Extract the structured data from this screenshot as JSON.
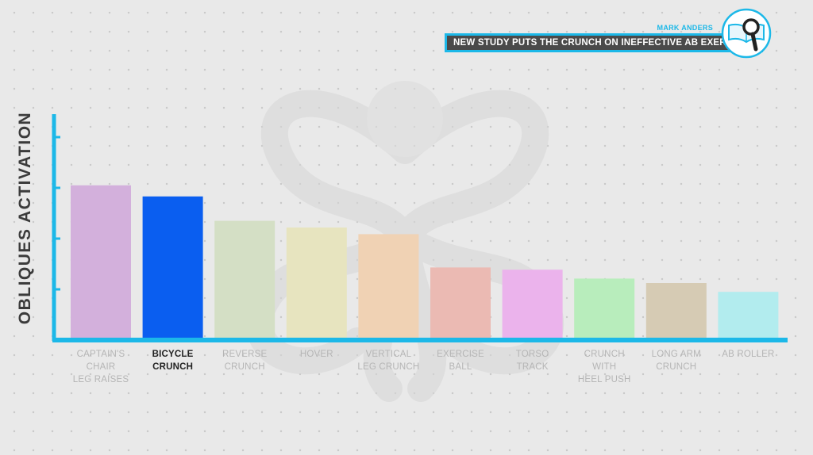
{
  "header": {
    "byline": "MARK ANDERS",
    "headline": "NEW STUDY PUTS THE CRUNCH ON INEFFECTIVE AB EXERCISES"
  },
  "colors": {
    "accent": "#1cb8e8",
    "axis": "#1cb8e8",
    "headline_bg": "#4a4a4a"
  },
  "chart_data": {
    "type": "bar",
    "title": "",
    "xlabel": "",
    "ylabel": "OBLIQUES ACTIVATION",
    "ylim": [
      0,
      100
    ],
    "grid": false,
    "categories": [
      "CAPTAIN'S CHAIR LEG RAISES",
      "BICYCLE CRUNCH",
      "REVERSE CRUNCH",
      "HOVER",
      "VERTICAL LEG CRUNCH",
      "EXERCISE BALL",
      "TORSO TRACK",
      "CRUNCH WITH HEEL PUSH",
      "LONG ARM CRUNCH",
      "AB ROLLER"
    ],
    "label_lines": [
      [
        "CAPTAIN'S",
        "CHAIR",
        "LEG RAISES"
      ],
      [
        "BICYCLE",
        "CRUNCH"
      ],
      [
        "REVERSE",
        "CRUNCH"
      ],
      [
        "HOVER"
      ],
      [
        "VERTICAL",
        "LEG CRUNCH"
      ],
      [
        "EXERCISE",
        "BALL"
      ],
      [
        "TORSO",
        "TRACK"
      ],
      [
        "CRUNCH",
        "WITH",
        "HEEL PUSH"
      ],
      [
        "LONG ARM",
        "CRUNCH"
      ],
      [
        "AB ROLLER"
      ]
    ],
    "values": [
      69,
      64,
      53,
      50,
      47,
      32,
      31,
      27,
      25,
      21
    ],
    "bar_colors": [
      "#d3b0dc",
      "#0a5ef0",
      "#d4dfc5",
      "#e7e4bf",
      "#f0d2b4",
      "#ebbab3",
      "#ebb3ec",
      "#b8edbc",
      "#d6cbb4",
      "#b2ecee"
    ],
    "highlight_index": 1,
    "y_ticks": [
      20,
      40,
      60,
      80
    ]
  }
}
